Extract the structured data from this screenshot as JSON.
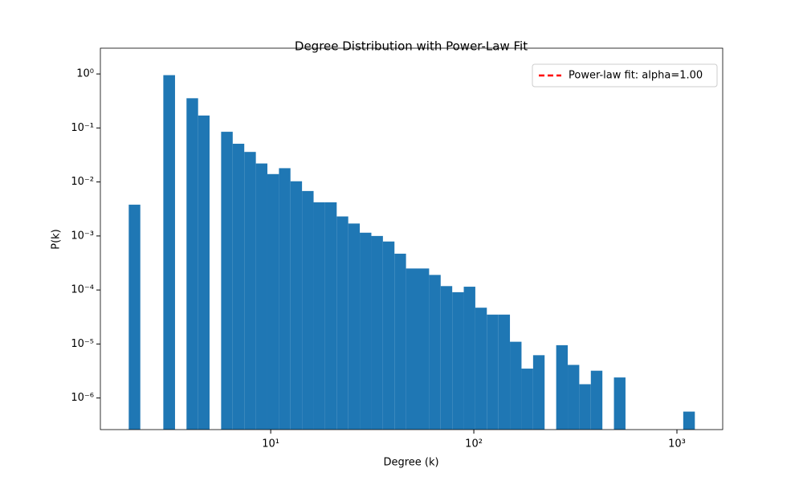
{
  "chart_data": {
    "type": "histogram",
    "title": "Degree Distribution with Power-Law Fit",
    "xlabel": "Degree (k)",
    "ylabel": "P(k)",
    "bins": [
      2.0,
      2.28,
      2.6,
      2.96,
      3.38,
      3.85,
      4.39,
      5.0,
      5.7,
      6.5,
      7.41,
      8.45,
      9.63,
      10.98,
      12.51,
      14.26,
      16.26,
      18.53,
      21.13,
      24.08,
      27.45,
      31.3,
      35.68,
      40.67,
      46.36,
      52.84,
      60.24,
      68.67,
      78.28,
      89.23,
      101.7,
      115.9,
      132.2,
      150.6,
      171.7,
      195.8,
      223.1,
      254.4,
      290.0,
      330.5,
      376.8,
      429.5,
      489.6,
      558.1,
      636.2,
      725.2,
      826.7,
      942.4,
      1074,
      1225
    ],
    "values": [
      0.0038,
      0,
      0,
      0.95,
      0,
      0.355,
      0.17,
      0,
      0.085,
      0.051,
      0.036,
      0.022,
      0.014,
      0.018,
      0.0103,
      0.0068,
      0.0042,
      0.0042,
      0.0023,
      0.0017,
      0.00115,
      0.001,
      0.00079,
      0.00047,
      0.00025,
      0.00025,
      0.00019,
      0.000118,
      9.1e-05,
      0.000115,
      4.7e-05,
      3.5e-05,
      3.5e-05,
      1.1e-05,
      3.5e-06,
      6.2e-06,
      0,
      9.5e-06,
      4.1e-06,
      1.8e-06,
      3.2e-06,
      0,
      2.4e-06,
      0,
      0,
      0,
      0,
      0,
      5.6e-07
    ],
    "color": "#1f77b4",
    "xscale": "log",
    "yscale": "log",
    "xlim": [
      1.45,
      1680
    ],
    "ylim": [
      2.6e-07,
      3.0
    ],
    "xticks": [
      {
        "value": 10,
        "label": "10¹"
      },
      {
        "value": 100,
        "label": "10²"
      },
      {
        "value": 1000,
        "label": "10³"
      }
    ],
    "yticks": [
      {
        "value": 1e-06,
        "label": "10⁻⁶"
      },
      {
        "value": 1e-05,
        "label": "10⁻⁵"
      },
      {
        "value": 0.0001,
        "label": "10⁻⁴"
      },
      {
        "value": 0.001,
        "label": "10⁻³"
      },
      {
        "value": 0.01,
        "label": "10⁻²"
      },
      {
        "value": 0.1,
        "label": "10⁻¹"
      },
      {
        "value": 1,
        "label": "10⁰"
      }
    ],
    "series": [
      {
        "name": "Power-law fit: alpha=1.00",
        "color": "#ff0000"
      }
    ],
    "legend": "upper right"
  }
}
